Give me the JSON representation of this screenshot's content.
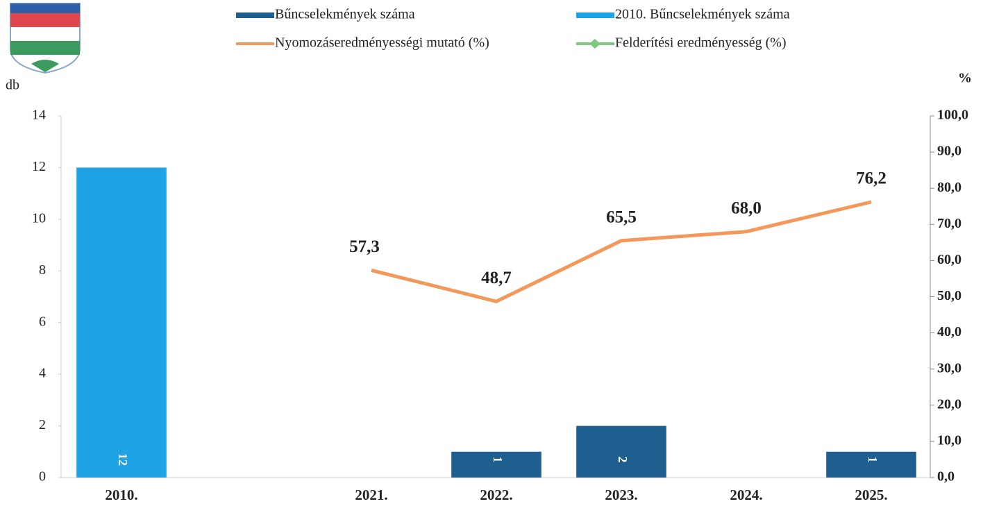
{
  "chart_data": {
    "type": "bar-line",
    "categories": [
      "2010.",
      null,
      "2021.",
      "2022.",
      "2023.",
      "2024.",
      "2025."
    ],
    "series": [
      {
        "name": "Bűncselekmények száma",
        "type": "bar",
        "color": "#1f5f8f",
        "values": [
          null,
          null,
          0,
          1,
          2,
          0,
          1
        ]
      },
      {
        "name": "2010. Bűncselekmények száma",
        "type": "bar",
        "color": "#1ea3e6",
        "values": [
          12,
          null,
          null,
          null,
          null,
          null,
          null
        ]
      },
      {
        "name": "Nyomozáseredményességi mutató (%)",
        "type": "line",
        "axis": "y2",
        "color": "#f4975a",
        "values": [
          null,
          null,
          57.3,
          48.7,
          65.5,
          68.0,
          76.2
        ],
        "value_labels": [
          null,
          null,
          "57,3",
          "48,7",
          "65,5",
          "68,0",
          "76,2"
        ]
      },
      {
        "name": "Felderítési eredményesség (%)",
        "type": "line",
        "axis": "y2",
        "color": "#7fc97f",
        "values": [
          null,
          null,
          null,
          null,
          null,
          null,
          null
        ]
      }
    ],
    "ylabel": "db",
    "y2label": "%",
    "ylim": [
      0,
      14
    ],
    "yticks": [
      0,
      2,
      4,
      6,
      8,
      10,
      12,
      14
    ],
    "y2lim": [
      0,
      100
    ],
    "y2ticks": [
      {
        "value": 0,
        "label": "0,0"
      },
      {
        "value": 10,
        "label": "10,0"
      },
      {
        "value": 20,
        "label": "20,0"
      },
      {
        "value": 30,
        "label": "30,0"
      },
      {
        "value": 40,
        "label": "40,0"
      },
      {
        "value": 50,
        "label": "50,0"
      },
      {
        "value": 60,
        "label": "60,0"
      },
      {
        "value": 70,
        "label": "70,0"
      },
      {
        "value": 80,
        "label": "80,0"
      },
      {
        "value": 90,
        "label": "90,0"
      },
      {
        "value": 100,
        "label": "100,0"
      }
    ]
  }
}
